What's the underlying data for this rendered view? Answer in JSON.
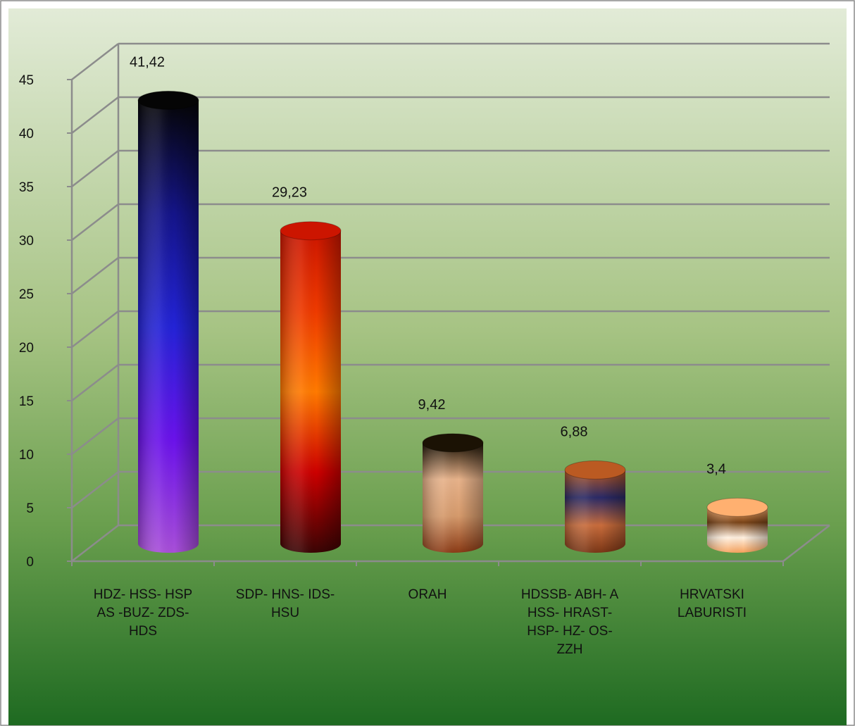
{
  "chart_data": {
    "type": "bar",
    "categories": [
      "HDZ- HSS- HSP AS -BUZ- ZDS- HDS",
      "SDP- HNS- IDS- HSU",
      "ORAH",
      "HDSSB- ABH- A HSS- HRAST- HSP- HZ- OS- ZZH",
      "HRVATSKI LABURISTI"
    ],
    "category_lines": [
      [
        "HDZ- HSS- HSP",
        "AS -BUZ- ZDS-",
        "HDS"
      ],
      [
        "SDP- HNS- IDS-",
        "HSU"
      ],
      [
        "ORAH"
      ],
      [
        "HDSSB- ABH- A",
        "HSS- HRAST-",
        "HSP- HZ- OS-",
        "ZZH"
      ],
      [
        "HRVATSKI",
        "LABURISTI"
      ]
    ],
    "values": [
      41.42,
      29.23,
      9.42,
      6.88,
      3.4
    ],
    "value_labels": [
      "41,42",
      "29,23",
      "9,42",
      "6,88",
      "3,4"
    ],
    "ylim": [
      0,
      45
    ],
    "yticks": [
      0,
      5,
      10,
      15,
      20,
      25,
      30,
      35,
      40,
      45
    ],
    "grid": true,
    "legend": "none",
    "style": "3d-cylinder",
    "background": {
      "top": "#e2ebd7",
      "bottom": "#1e6a21"
    },
    "bar_colors": [
      [
        "#a84fd8",
        "#6a12ea",
        "#2323d6",
        "#141488",
        "#050505"
      ],
      [
        "#3a0404",
        "#cc0000",
        "#ff7a00",
        "#ee3a00",
        "#cc1500"
      ],
      [
        "#8b3b16",
        "#d59a6c",
        "#e7b28a",
        "#1b1204"
      ],
      [
        "#7a3616",
        "#c86c3c",
        "#2a2a66",
        "#bb5a22"
      ],
      [
        "#f7a25c",
        "#fff0e0",
        "#7a4418",
        "#ffb070"
      ]
    ]
  }
}
